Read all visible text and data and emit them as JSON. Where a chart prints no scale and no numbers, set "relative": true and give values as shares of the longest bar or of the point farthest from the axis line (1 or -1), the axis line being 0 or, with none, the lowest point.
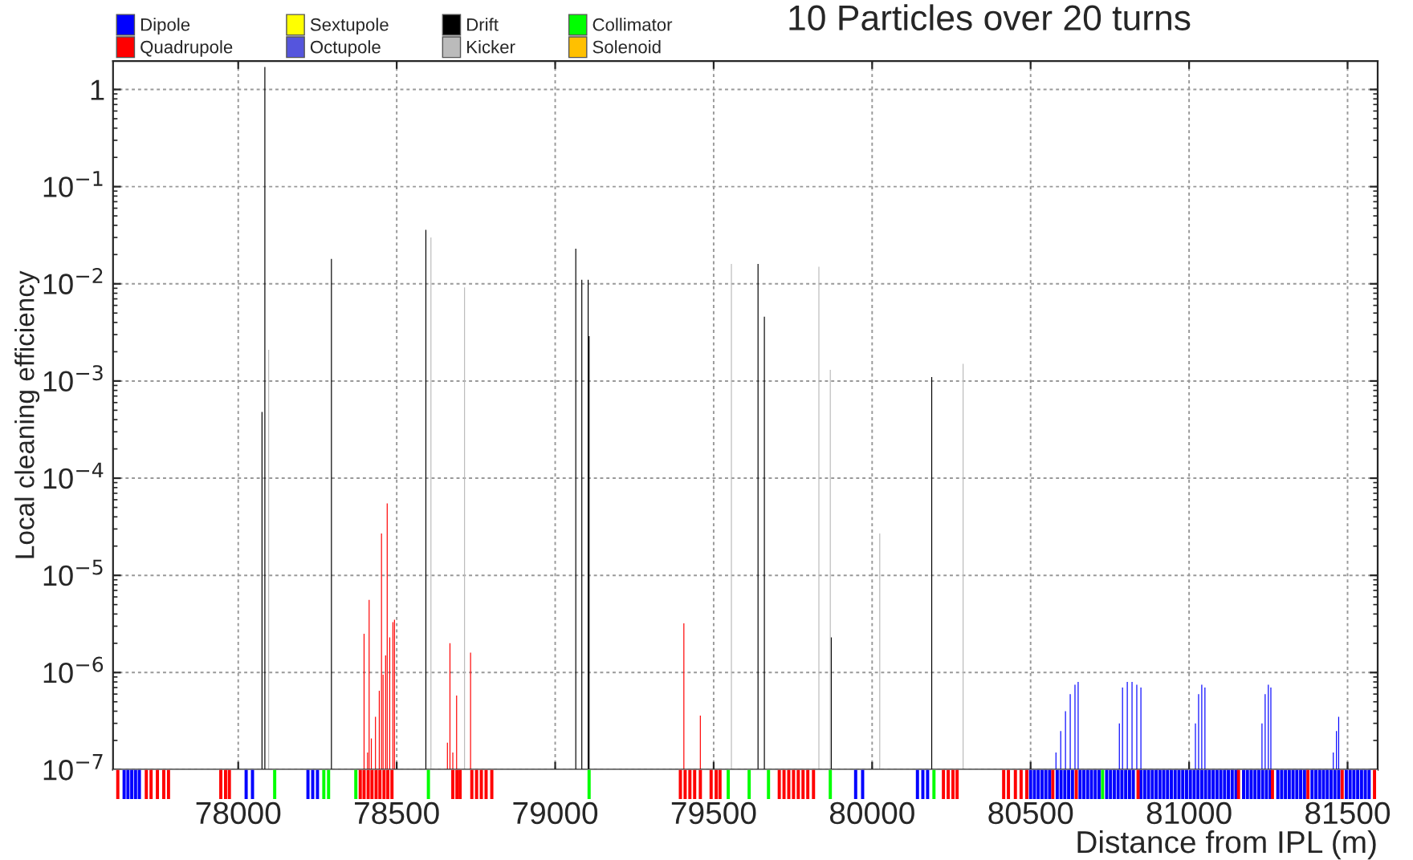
{
  "chart_data": [
    {
      "type": "bar",
      "title": "10 Particles over 20 turns",
      "ylabel": "Local cleaning efficiency",
      "log": "y",
      "grid": true,
      "legend": "top left",
      "tick_labels": "y",
      "xlim": [
        77605,
        81595
      ],
      "xticks": [
        {
          "value": 78000,
          "label": null
        },
        {
          "value": 78500,
          "label": null
        },
        {
          "value": 79000,
          "label": null
        },
        {
          "value": 79500,
          "label": null
        },
        {
          "value": 80000,
          "label": null
        },
        {
          "value": 80500,
          "label": null
        },
        {
          "value": 81000,
          "label": null
        },
        {
          "value": 81500,
          "label": null
        }
      ],
      "ylim": [
        1e-07,
        1.96
      ],
      "yticks": [
        {
          "value": 1e-07,
          "label": "10$^{−7}$"
        },
        {
          "value": 1e-06,
          "label": "10$^{−6}$"
        },
        {
          "value": 1e-05,
          "label": "10$^{−5}$"
        },
        {
          "value": 0.0001,
          "label": "10$^{−4}$"
        },
        {
          "value": 0.001,
          "label": "10$^{−3}$"
        },
        {
          "value": 0.01,
          "label": "10$^{−2}$"
        },
        {
          "value": 0.1,
          "label": "10$^{−1}$"
        },
        {
          "value": 1,
          "label": "1"
        }
      ],
      "series": [
        {
          "name": "Dipole",
          "color": "#0000ff",
          "x": [
            80580,
            80595,
            80610,
            80625,
            80640,
            80650,
            80780,
            80790,
            80805,
            80820,
            80835,
            80848,
            81020,
            81030,
            81040,
            81050,
            81230,
            81240,
            81250,
            81258,
            81455,
            81465,
            81472
          ],
          "values": [
            1.5e-07,
            2.5e-07,
            4e-07,
            6e-07,
            7.5e-07,
            8e-07,
            3e-07,
            7e-07,
            8e-07,
            8e-07,
            7.5e-07,
            7e-07,
            3e-07,
            6e-07,
            7.5e-07,
            7e-07,
            3e-07,
            6e-07,
            7.5e-07,
            7e-07,
            1.5e-07,
            2.5e-07,
            3.5e-07
          ]
        },
        {
          "name": "Quadrupole",
          "color": "#ff0000",
          "x": [
            78397,
            78408,
            78413,
            78420,
            78433,
            78445,
            78452,
            78457,
            78465,
            78470,
            78478,
            78488,
            78493,
            78660,
            78668,
            78677,
            78689,
            78733,
            79406,
            79458
          ],
          "values": [
            2.5e-06,
            1.5e-07,
            5.6e-06,
            2.1e-07,
            3.5e-07,
            6.5e-07,
            2.7e-05,
            9.5e-07,
            1.5e-06,
            5.5e-05,
            2.3e-06,
            3.3e-06,
            3.5e-06,
            1.9e-07,
            2e-06,
            1.5e-07,
            5.8e-07,
            1.6e-06,
            3.2e-06,
            3.6e-07
          ]
        },
        {
          "name": "Sextupole",
          "color": "#ffff00"
        },
        {
          "name": "Octupole",
          "color": "#5555dd"
        },
        {
          "name": "Drift",
          "color": "#000000",
          "x": [
            78075,
            78084,
            78294,
            78592,
            79065,
            79084,
            79104,
            79107,
            79640,
            79660,
            79871,
            80188
          ],
          "values": [
            0.00048,
            1.7,
            0.018,
            0.036,
            0.023,
            0.011,
            0.011,
            0.0029,
            0.016,
            0.0046,
            2.3e-06,
            0.0011
          ]
        },
        {
          "name": "Kicker",
          "color": "#bbbbbb",
          "x": [
            78096,
            78608,
            78714,
            79556,
            79832,
            79868,
            80024,
            80287
          ],
          "values": [
            0.0021,
            0.03,
            0.0092,
            0.016,
            0.015,
            0.0013,
            2.7e-05,
            0.0015
          ]
        },
        {
          "name": "Collimator",
          "color": "#00ff00"
        },
        {
          "name": "Solenoid",
          "color": "#ffc000"
        }
      ]
    },
    {
      "type": "bar",
      "relative": true,
      "xlabel": "Distance from IPL (m)",
      "tick_labels": "x",
      "xlim": [
        77605,
        81595
      ],
      "xticks": [
        78000,
        78500,
        79000,
        79500,
        80000,
        80500,
        81000,
        81500
      ],
      "series": [
        {
          "color": "#0000ff",
          "x": [
            77640,
            77652,
            77664,
            77676,
            77688,
            78025,
            78045,
            78220,
            78235,
            78250,
            79948,
            79970,
            80143,
            80160,
            80175,
            80500,
            80512,
            80524,
            80536,
            80548,
            80560,
            80584,
            80596,
            80608,
            80620,
            80632,
            80656,
            80668,
            80680,
            80692,
            80704,
            80716,
            80740,
            80752,
            80764,
            80776,
            80788,
            80800,
            80812,
            80824,
            80848,
            80860,
            80872,
            80884,
            80896,
            80908,
            80920,
            80932,
            80944,
            80956,
            80968,
            80980,
            80992,
            81004,
            81016,
            81028,
            81040,
            81052,
            81064,
            81076,
            81088,
            81100,
            81112,
            81124,
            81136,
            81148,
            81172,
            81184,
            81196,
            81208,
            81220,
            81232,
            81244,
            81256,
            81280,
            81292,
            81304,
            81316,
            81328,
            81340,
            81352,
            81364,
            81388,
            81400,
            81412,
            81424,
            81436,
            81448,
            81460,
            81472,
            81496,
            81508,
            81520,
            81532,
            81544,
            81556,
            81568
          ],
          "values": [
            1,
            1,
            1,
            1,
            1,
            1,
            1,
            1,
            1,
            1,
            1,
            1,
            1,
            1,
            1,
            1,
            1,
            1,
            1,
            1,
            1,
            1,
            1,
            1,
            1,
            1,
            1,
            1,
            1,
            1,
            1,
            1,
            1,
            1,
            1,
            1,
            1,
            1,
            1,
            1,
            1,
            1,
            1,
            1,
            1,
            1,
            1,
            1,
            1,
            1,
            1,
            1,
            1,
            1,
            1,
            1,
            1,
            1,
            1,
            1,
            1,
            1,
            1,
            1,
            1,
            1,
            1,
            1,
            1,
            1,
            1,
            1,
            1,
            1,
            1,
            1,
            1,
            1,
            1,
            1,
            1,
            1,
            1,
            1,
            1,
            1,
            1,
            1,
            1,
            1,
            1,
            1,
            1,
            1,
            1,
            1,
            1
          ]
        },
        {
          "color": "#ff0000",
          "x": [
            77620,
            77710,
            77725,
            77745,
            77765,
            77780,
            77945,
            77960,
            77972,
            78385,
            78397,
            78410,
            78422,
            78435,
            78447,
            78460,
            78472,
            78485,
            78677,
            78690,
            78700,
            78737,
            78752,
            78767,
            78782,
            78800,
            79395,
            79410,
            79425,
            79440,
            79458,
            79492,
            79508,
            79520,
            79707,
            79722,
            79737,
            79752,
            79767,
            79782,
            79797,
            79815,
            80225,
            80240,
            80255,
            80268,
            80415,
            80430,
            80452,
            80470,
            80488,
            80570,
            80644,
            80839,
            81156,
            81263,
            81375,
            81483,
            81585
          ],
          "values": [
            1,
            1,
            1,
            1,
            1,
            1,
            1,
            1,
            1,
            1,
            1,
            1,
            1,
            1,
            1,
            1,
            1,
            1,
            1,
            1,
            1,
            1,
            1,
            1,
            1,
            1,
            1,
            1,
            1,
            1,
            1,
            1,
            1,
            1,
            1,
            1,
            1,
            1,
            1,
            1,
            1,
            1,
            1,
            1,
            1,
            1,
            1,
            1,
            1,
            1,
            1,
            1,
            1,
            1,
            1,
            1,
            1,
            1,
            1
          ]
        },
        {
          "color": "#00ff00",
          "x": [
            78115,
            78270,
            78285,
            78371,
            78600,
            79107,
            79546,
            79612,
            79673,
            79868,
            80195,
            80727
          ],
          "values": [
            1,
            1,
            1,
            1,
            1,
            1,
            1,
            1,
            1,
            1,
            1,
            1
          ]
        }
      ]
    }
  ]
}
